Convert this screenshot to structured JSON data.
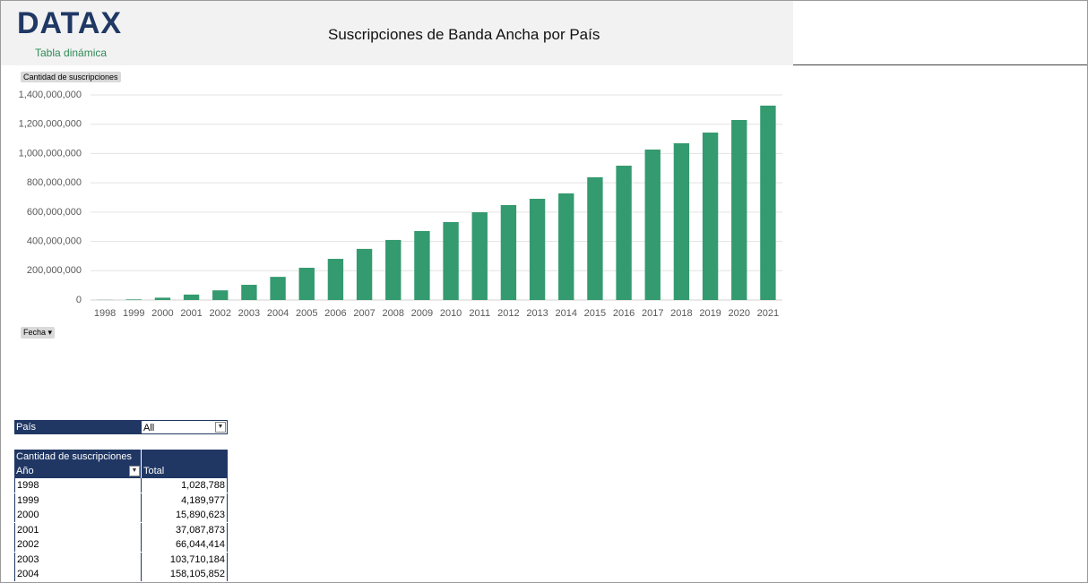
{
  "header": {
    "logo": "DATAX",
    "subtitle": "Tabla dinámica",
    "title": "Suscripciones de Banda Ancha por País"
  },
  "chart_data": {
    "type": "bar",
    "categories": [
      "1998",
      "1999",
      "2000",
      "2001",
      "2002",
      "2003",
      "2004",
      "2005",
      "2006",
      "2007",
      "2008",
      "2009",
      "2010",
      "2011",
      "2012",
      "2013",
      "2014",
      "2015",
      "2016",
      "2017",
      "2018",
      "2019",
      "2020",
      "2021"
    ],
    "values": [
      1028788,
      4189977,
      15890623,
      37087873,
      66044414,
      103710184,
      158105852,
      220000000,
      281000000,
      349000000,
      410000000,
      471000000,
      532000000,
      599000000,
      648000000,
      691000000,
      728000000,
      838000000,
      917000000,
      1027000000,
      1070000000,
      1143000000,
      1229000000,
      1327000000
    ],
    "color": "#349a6f",
    "ylim": [
      0,
      1400000000
    ],
    "yticks": [
      0,
      {
        "value": 200000000,
        "label": "200,000,000"
      },
      {
        "value": 400000000,
        "label": "400,000,000"
      },
      {
        "value": 600000000,
        "label": "600,000,000"
      },
      {
        "value": 800000000,
        "label": "800,000,000"
      },
      {
        "value": 1000000000,
        "label": "1,000,000,000"
      },
      {
        "value": 1200000000,
        "label": "1,200,000,000"
      },
      {
        "value": 1400000000,
        "label": "1,400,000,000"
      }
    ],
    "grid": true
  },
  "chart_buttons": {
    "values_field": "Cantidad de suscripciones",
    "axis_field": "Fecha"
  },
  "pivot": {
    "filter_label": "País",
    "filter_value": "All",
    "values_header": "Cantidad de suscripciones",
    "row_header": "Año",
    "total_header": "Total",
    "rows": [
      [
        "1998",
        "1,028,788"
      ],
      [
        "1999",
        "4,189,977"
      ],
      [
        "2000",
        "15,890,623"
      ],
      [
        "2001",
        "37,087,873"
      ],
      [
        "2002",
        "66,044,414"
      ],
      [
        "2003",
        "103,710,184"
      ],
      [
        "2004",
        "158,105,852"
      ]
    ]
  }
}
